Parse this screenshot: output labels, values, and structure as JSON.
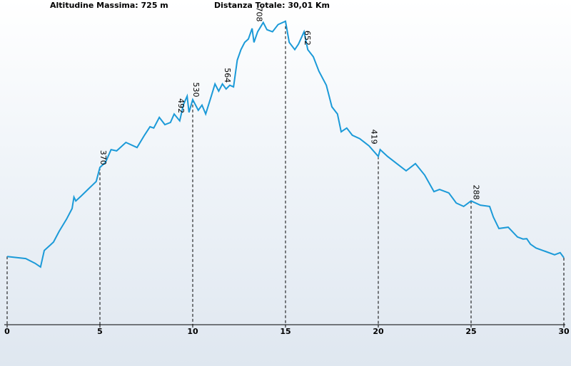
{
  "chart_data": {
    "type": "line",
    "header_left": "Altitudine Massima: 725 m",
    "header_right": "Distanza Totale: 30,01 Km",
    "x": [
      0,
      1,
      1.5,
      1.8,
      2.0,
      2.3,
      2.5,
      2.8,
      3.2,
      3.5,
      3.6,
      3.7,
      4.0,
      4.4,
      4.8,
      5.0,
      5.3,
      5.6,
      5.9,
      6.4,
      7.0,
      7.4,
      7.7,
      7.9,
      8.2,
      8.5,
      8.8,
      9.0,
      9.3,
      9.5,
      9.7,
      9.8,
      10.0,
      10.3,
      10.5,
      10.7,
      11.0,
      11.2,
      11.4,
      11.6,
      11.8,
      12.0,
      12.2,
      12.4,
      12.6,
      12.8,
      13.0,
      13.2,
      13.3,
      13.5,
      13.8,
      14.0,
      14.3,
      14.6,
      15.0,
      15.2,
      15.5,
      15.7,
      16.0,
      16.2,
      16.5,
      16.8,
      17.2,
      17.5,
      17.8,
      18.0,
      18.3,
      18.6,
      19.0,
      19.5,
      20.0,
      20.1,
      20.5,
      21.0,
      21.5,
      22.0,
      22.5,
      23.0,
      23.3,
      23.8,
      24.2,
      24.6,
      25.0,
      25.5,
      26.0,
      26.2,
      26.5,
      27.0,
      27.5,
      27.8,
      28.0,
      28.2,
      28.5,
      29.0,
      29.5,
      29.8,
      30.0
    ],
    "series": [
      {
        "name": "Altitudine",
        "color": "#1b9ad8",
        "values": [
          161,
          156,
          145,
          136,
          175,
          187,
          195,
          220,
          249,
          274,
          301,
          292,
          304,
          321,
          338,
          371,
          383,
          413,
          410,
          430,
          418,
          447,
          467,
          464,
          489,
          472,
          477,
          497,
          481,
          519,
          539,
          501,
          531,
          506,
          518,
          497,
          539,
          568,
          551,
          568,
          556,
          565,
          561,
          624,
          649,
          666,
          674,
          699,
          666,
          691,
          713,
          696,
          691,
          708,
          716,
          666,
          649,
          662,
          691,
          649,
          632,
          598,
          565,
          514,
          497,
          455,
          464,
          447,
          439,
          422,
          397,
          413,
          397,
          380,
          363,
          380,
          353,
          314,
          319,
          311,
          287,
          279,
          292,
          282,
          279,
          254,
          227,
          230,
          207,
          202,
          203,
          190,
          181,
          173,
          165,
          170,
          158
        ]
      }
    ],
    "annotations": [
      {
        "x": 5.0,
        "y": 370
      },
      {
        "x": 9.2,
        "y": 492
      },
      {
        "x": 10.0,
        "y": 530
      },
      {
        "x": 11.7,
        "y": 564
      },
      {
        "x": 13.4,
        "y": 708
      },
      {
        "x": 16.0,
        "y": 652
      },
      {
        "x": 19.6,
        "y": 419
      },
      {
        "x": 25.1,
        "y": 288
      }
    ],
    "xlim": [
      0,
      30
    ],
    "xticks": [
      0,
      5,
      10,
      15,
      20,
      25,
      30
    ],
    "ylim": [
      0,
      766
    ]
  }
}
